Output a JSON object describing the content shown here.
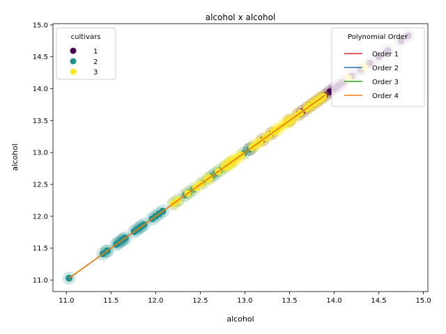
{
  "chart_data": {
    "type": "scatter",
    "title": "alcohol x alcohol",
    "xlabel": "alcohol",
    "ylabel": "alcohol",
    "xlim": [
      10.85,
      15.05
    ],
    "ylim": [
      10.82,
      15.02
    ],
    "x_ticks": [
      "11.0",
      "11.5",
      "12.0",
      "12.5",
      "13.0",
      "13.5",
      "14.0",
      "14.5",
      "15.0"
    ],
    "y_ticks": [
      "11.0",
      "11.5",
      "12.0",
      "12.5",
      "13.0",
      "13.5",
      "14.0",
      "14.5",
      "15.0"
    ],
    "grid": false,
    "legends": [
      {
        "title": "cultivars",
        "placement": "top-left",
        "entries": [
          {
            "label": "1",
            "color": "#440154"
          },
          {
            "label": "2",
            "color": "#21918c"
          },
          {
            "label": "3",
            "color": "#fde725"
          }
        ]
      },
      {
        "title": "Polynomial Order",
        "placement": "top-right",
        "entries": [
          {
            "label": "Order 1",
            "color": "#d62728"
          },
          {
            "label": "Order 2",
            "color": "#1f77b4"
          },
          {
            "label": "Order 3",
            "color": "#2ca02c"
          },
          {
            "label": "Order 4",
            "color": "#ff7f0e"
          }
        ]
      }
    ],
    "series": [
      {
        "name": "1",
        "color": "#440154",
        "x": [
          13.05,
          13.2,
          13.3,
          13.5,
          13.6,
          13.65,
          13.7,
          13.75,
          13.8,
          13.85,
          13.9,
          13.95,
          14.0,
          14.05,
          14.1,
          14.2,
          14.3,
          14.4,
          14.5,
          14.6,
          14.75,
          14.83
        ],
        "y": [
          13.05,
          13.2,
          13.3,
          13.5,
          13.6,
          13.65,
          13.7,
          13.75,
          13.8,
          13.85,
          13.9,
          13.95,
          14.0,
          14.05,
          14.1,
          14.2,
          14.3,
          14.4,
          14.5,
          14.6,
          14.75,
          14.83
        ]
      },
      {
        "name": "2",
        "color": "#21918c",
        "x": [
          11.03,
          11.41,
          11.45,
          11.46,
          11.56,
          11.58,
          11.61,
          11.62,
          11.64,
          11.66,
          11.76,
          11.79,
          11.82,
          11.84,
          11.87,
          11.96,
          12.0,
          12.04,
          12.08,
          12.2,
          12.25,
          12.33,
          12.37,
          12.42,
          12.52,
          12.6,
          12.64,
          12.67,
          12.72,
          12.77,
          12.84,
          12.99,
          13.05,
          13.09
        ],
        "y": [
          11.03,
          11.41,
          11.45,
          11.46,
          11.56,
          11.58,
          11.61,
          11.62,
          11.64,
          11.66,
          11.76,
          11.79,
          11.82,
          11.84,
          11.87,
          11.96,
          12.0,
          12.04,
          12.08,
          12.2,
          12.25,
          12.33,
          12.37,
          12.42,
          12.52,
          12.6,
          12.64,
          12.67,
          12.72,
          12.77,
          12.84,
          12.99,
          13.05,
          13.09
        ]
      },
      {
        "name": "3",
        "color": "#fde725",
        "x": [
          12.2,
          12.25,
          12.36,
          12.45,
          12.51,
          12.58,
          12.6,
          12.7,
          12.77,
          12.79,
          12.81,
          12.82,
          12.84,
          12.86,
          12.87,
          12.88,
          12.93,
          12.96,
          13.08,
          13.11,
          13.16,
          13.17,
          13.23,
          13.27,
          13.32,
          13.34,
          13.36,
          13.4,
          13.45,
          13.48,
          13.49,
          13.5,
          13.52,
          13.58,
          13.62,
          13.69,
          13.71,
          13.73,
          13.77,
          13.78,
          13.8,
          13.84,
          13.86,
          13.88,
          14.16,
          14.34
        ],
        "y": [
          12.2,
          12.25,
          12.36,
          12.45,
          12.51,
          12.58,
          12.6,
          12.7,
          12.77,
          12.79,
          12.81,
          12.82,
          12.84,
          12.86,
          12.87,
          12.88,
          12.93,
          12.96,
          13.08,
          13.11,
          13.16,
          13.17,
          13.23,
          13.27,
          13.32,
          13.34,
          13.36,
          13.4,
          13.45,
          13.48,
          13.49,
          13.5,
          13.52,
          13.58,
          13.62,
          13.69,
          13.71,
          13.73,
          13.77,
          13.78,
          13.8,
          13.84,
          13.86,
          13.88,
          14.16,
          14.34
        ]
      }
    ],
    "fit_lines": [
      {
        "name": "Order 1",
        "color": "#d62728",
        "x": [
          11.03,
          13.9
        ],
        "y": [
          11.03,
          13.9
        ]
      },
      {
        "name": "Order 2",
        "color": "#1f77b4",
        "x": [
          11.03,
          13.9
        ],
        "y": [
          11.03,
          13.9
        ]
      },
      {
        "name": "Order 3",
        "color": "#2ca02c",
        "x": [
          11.03,
          13.9
        ],
        "y": [
          11.03,
          13.9
        ]
      },
      {
        "name": "Order 4",
        "color": "#ff7f0e",
        "x": [
          11.03,
          13.9
        ],
        "y": [
          11.03,
          13.9
        ]
      }
    ]
  }
}
